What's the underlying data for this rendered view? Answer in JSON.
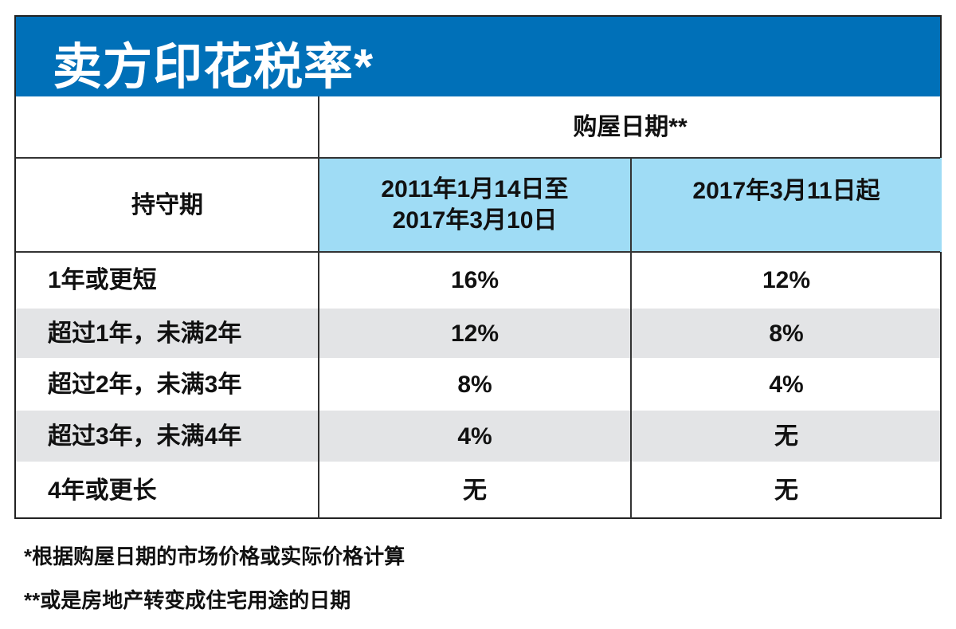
{
  "title": "卖方印花税率*",
  "header": {
    "group_label": "购屋日期**",
    "holding_label": "持守期",
    "columns": [
      "2011年1月14日至\n2017年3月10日",
      "2017年3月11日起"
    ],
    "column_lines": [
      [
        "2011年1月14日至",
        "2017年3月10日"
      ],
      [
        "2017年3月11日起"
      ]
    ]
  },
  "rows": [
    {
      "period": "1年或更短",
      "values": [
        "16%",
        "12%"
      ]
    },
    {
      "period": "超过1年，未满2年",
      "values": [
        "12%",
        "8%"
      ]
    },
    {
      "period": "超过2年，未满3年",
      "values": [
        "8%",
        "4%"
      ]
    },
    {
      "period": "超过3年，未满4年",
      "values": [
        "4%",
        "无"
      ]
    },
    {
      "period": "4年或更长",
      "values": [
        "无",
        "无"
      ]
    }
  ],
  "footnotes": [
    "*根据购屋日期的市场价格或实际价格计算",
    "**或是房地产转变成住宅用途的日期"
  ],
  "colors": {
    "header_blue": "#0070b8",
    "light_blue": "#9fdcf5",
    "row_gray": "#e3e4e6"
  }
}
